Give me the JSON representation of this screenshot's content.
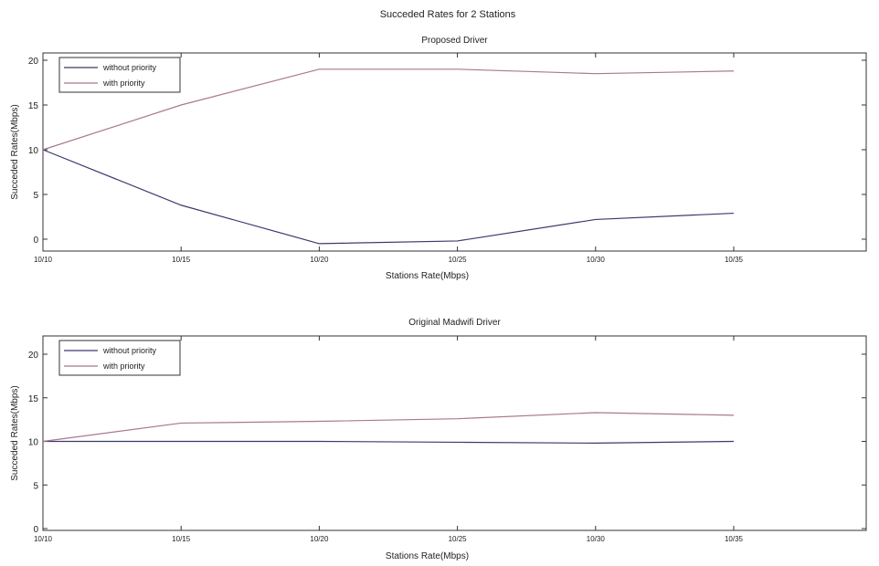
{
  "figure_title": "Succeded Rates for 2 Stations",
  "chart_data": [
    {
      "type": "line",
      "title": "Proposed Driver",
      "xlabel": "Stations Rate(Mbps)",
      "ylabel": "Succeded Rates(Mbps)",
      "categories": [
        "10/10",
        "10/15",
        "10/20",
        "10/25",
        "10/30",
        "10/35"
      ],
      "ylim": [
        -1,
        22
      ],
      "yticks": [
        "0",
        "5",
        "10",
        "15",
        "20"
      ],
      "legend_position": "top-left",
      "grid": false,
      "series": [
        {
          "name": "without priority",
          "color": "#3a3a6e",
          "values": [
            10,
            3.8,
            -0.5,
            -0.2,
            2.2,
            2.9
          ]
        },
        {
          "name": "with priority",
          "color": "#a87890",
          "values": [
            10,
            15,
            19,
            19,
            18.5,
            18.8
          ]
        }
      ]
    },
    {
      "type": "line",
      "title": "Original Madwifi Driver",
      "xlabel": "Stations Rate(Mbps)",
      "ylabel": "Succeded Rates(Mbps)",
      "categories": [
        "10/10",
        "10/15",
        "10/20",
        "10/25",
        "10/30",
        "10/35"
      ],
      "ylim": [
        0,
        22
      ],
      "yticks": [
        "0",
        "5",
        "10",
        "15",
        "20"
      ],
      "legend_position": "top-left",
      "grid": false,
      "series": [
        {
          "name": "without priority",
          "color": "#3a3a6e",
          "values": [
            10,
            10,
            10,
            9.9,
            9.8,
            10
          ]
        },
        {
          "name": "with priority",
          "color": "#a87890",
          "values": [
            10,
            12.1,
            12.3,
            12.6,
            13.3,
            13
          ]
        }
      ]
    }
  ]
}
